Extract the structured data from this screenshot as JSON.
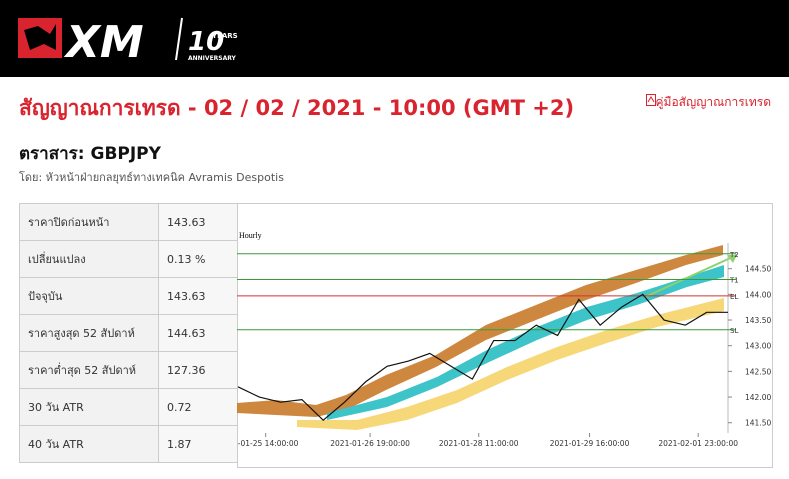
{
  "logo": {
    "brand": "XM",
    "years": "10",
    "years_word": "YEARS",
    "anniversary": "ANNIVERSARY"
  },
  "header": {
    "title": "สัญญาณการเทรด - 02 / 02 / 2021 - 10:00 (GMT +2)",
    "guide_link": "คู่มือสัญญาณการเทรด",
    "instrument": "ตราสาร: GBPJPY",
    "author": "โดย: หัวหน้าฝ่ายกลยุทธ์ทางเทคนิค Avramis Despotis"
  },
  "table": {
    "rows": [
      [
        "ราคาปิดก่อนหน้า",
        "143.63"
      ],
      [
        "เปลี่ยนแปลง",
        "0.13 %"
      ],
      [
        "ปัจจุบัน",
        "143.63"
      ],
      [
        "ราคาสูงสุด 52 สัปดาห์",
        "144.63"
      ],
      [
        "ราคาต่ำสุด 52 สัปดาห์",
        "127.36"
      ],
      [
        "30 วัน ATR",
        "0.72"
      ],
      [
        "40 วัน ATR",
        "1.87"
      ]
    ]
  },
  "chart_data": {
    "type": "line",
    "title": "Hourly",
    "values": [
      142.2,
      142.0,
      141.9,
      141.95,
      141.55,
      141.9,
      142.3,
      142.6,
      142.7,
      142.85,
      142.6,
      142.35,
      143.1,
      143.1,
      143.4,
      143.2,
      143.9,
      143.4,
      143.75,
      144.0,
      143.5,
      143.4,
      143.65,
      143.65
    ],
    "color": "#111111",
    "xlim": [
      0,
      23
    ],
    "xticks": [
      {
        "value": 1.3,
        "label": "1-01-25 14:00:00"
      },
      {
        "value": 6.2,
        "label": "2021-01-26 19:00:00"
      },
      {
        "value": 11.3,
        "label": "2021-01-28 11:00:00"
      },
      {
        "value": 16.5,
        "label": "2021-01-29 16:00:00"
      },
      {
        "value": 21.6,
        "label": "2021-02-01 23:00:00"
      }
    ],
    "ylim": [
      141.3,
      145.0
    ],
    "yticks": [
      {
        "value": 141.5,
        "label": "141.50"
      },
      {
        "value": 142,
        "label": "142.00"
      },
      {
        "value": 142.5,
        "label": "142.50"
      },
      {
        "value": 143,
        "label": "143.00"
      },
      {
        "value": 143.5,
        "label": "143.50"
      },
      {
        "value": 144,
        "label": "144.00"
      },
      {
        "value": 144.5,
        "label": "144.50"
      }
    ],
    "levels": [
      {
        "name": "T2",
        "value": 144.79,
        "color": "#3a9a3a"
      },
      {
        "name": "T1",
        "value": 144.29,
        "color": "#3a9a3a"
      },
      {
        "name": "EL",
        "value": 143.97,
        "color": "#d33333"
      },
      {
        "name": "SL",
        "value": 143.31,
        "color": "#3a9a3a"
      }
    ]
  }
}
